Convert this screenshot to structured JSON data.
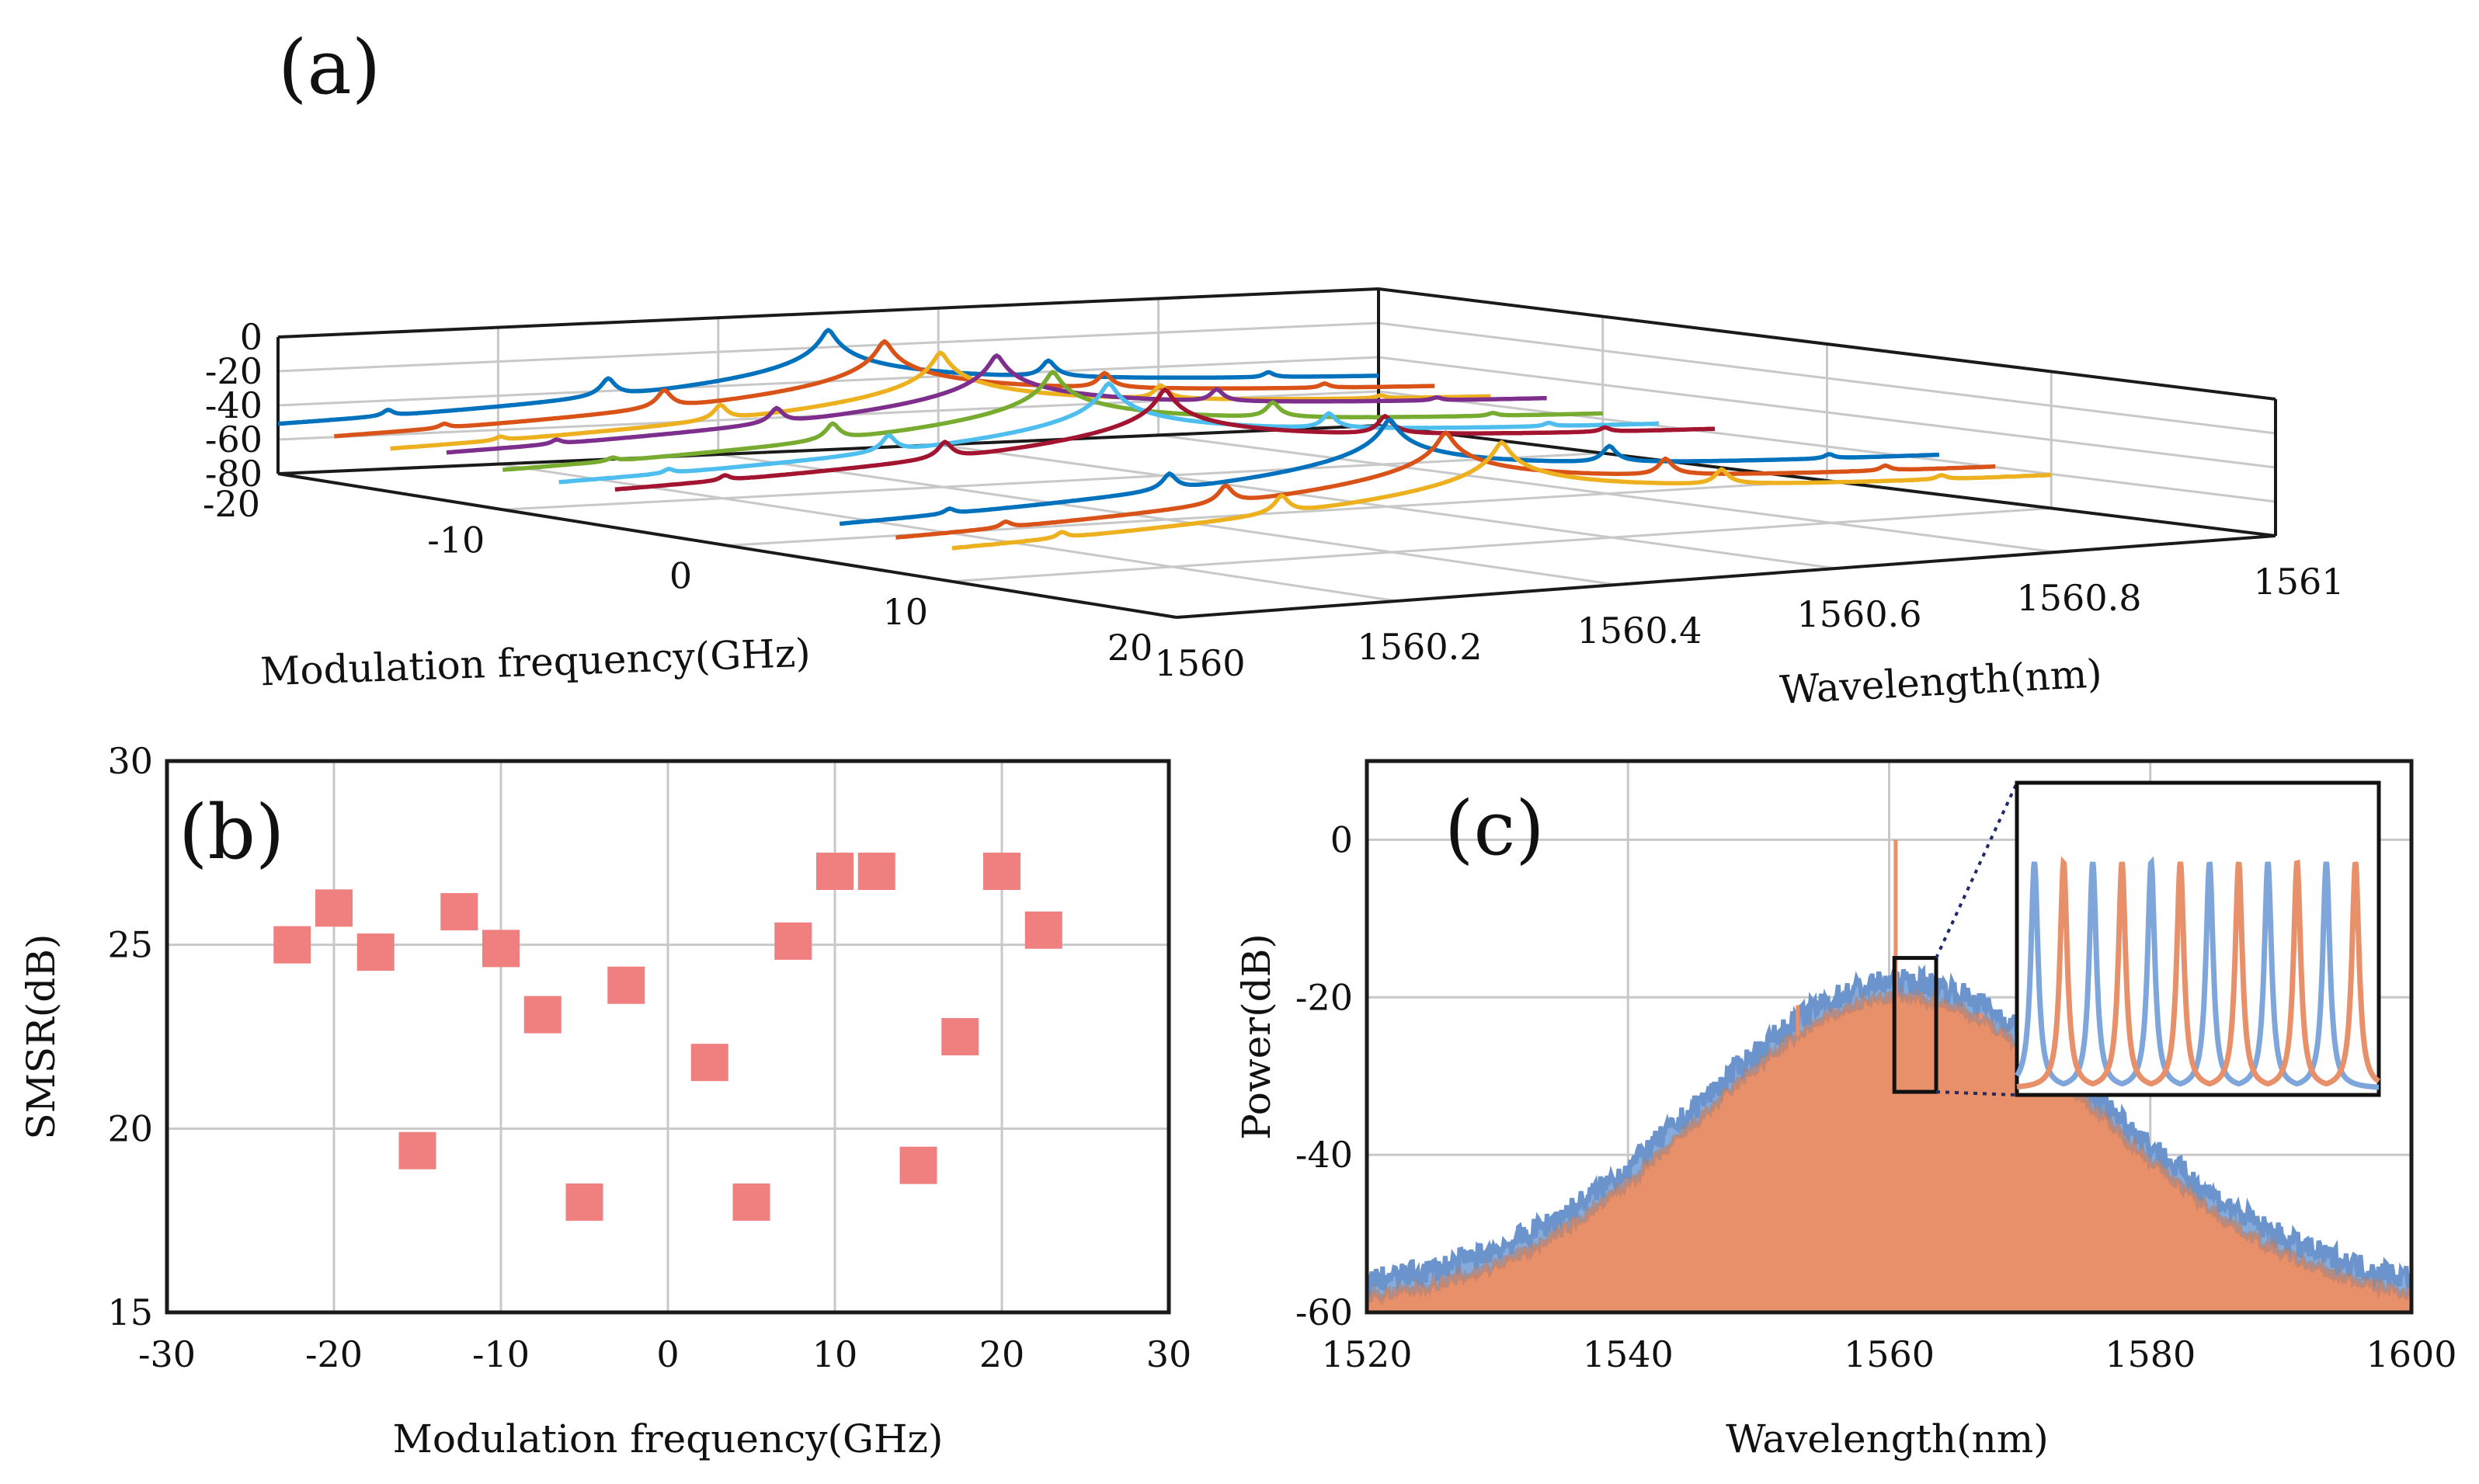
{
  "chart_data": [
    {
      "panel": "(a)",
      "type": "line",
      "title": "",
      "xlabel": "Wavelength(nm)",
      "ylabel": "Modulation frequency(GHz)",
      "zlabel": "",
      "x_range": [
        1560,
        1561
      ],
      "y_range": [
        -20,
        20
      ],
      "z_range": [
        -80,
        0
      ],
      "x_ticks": [
        "1560",
        "1560.2",
        "1560.4",
        "1560.6",
        "1560.8",
        "1561"
      ],
      "y_ticks": [
        "-20",
        "-10",
        "0",
        "10",
        "20"
      ],
      "z_ticks": [
        "0",
        "-20",
        "-40",
        "-60",
        "-80"
      ],
      "noise_floor_db": -72,
      "series": [
        {
          "name": "-20 GHz",
          "freq": -20,
          "color": "#0072BD",
          "peaks": [
            {
              "x": 1560.1,
              "db": -48
            },
            {
              "x": 1560.3,
              "db": -33
            },
            {
              "x": 1560.5,
              "db": -10
            },
            {
              "x": 1560.7,
              "db": -34
            },
            {
              "x": 1560.9,
              "db": -49
            }
          ]
        },
        {
          "name": "-17.5 GHz",
          "freq": -17.5,
          "color": "#D95319",
          "peaks": [
            {
              "x": 1560.1,
              "db": -52
            },
            {
              "x": 1560.3,
              "db": -35
            },
            {
              "x": 1560.5,
              "db": -12
            },
            {
              "x": 1560.7,
              "db": -37
            },
            {
              "x": 1560.9,
              "db": -52
            }
          ]
        },
        {
          "name": "-15 GHz",
          "freq": -15,
          "color": "#EDB120",
          "peaks": [
            {
              "x": 1560.1,
              "db": -55
            },
            {
              "x": 1560.3,
              "db": -39
            },
            {
              "x": 1560.5,
              "db": -14
            },
            {
              "x": 1560.7,
              "db": -40
            },
            {
              "x": 1560.9,
              "db": -56
            }
          ]
        },
        {
          "name": "-12.5 GHz",
          "freq": -12.5,
          "color": "#7E2F8E",
          "peaks": [
            {
              "x": 1560.1,
              "db": -51
            },
            {
              "x": 1560.3,
              "db": -36
            },
            {
              "x": 1560.5,
              "db": -11
            },
            {
              "x": 1560.7,
              "db": -38
            },
            {
              "x": 1560.9,
              "db": -53
            }
          ]
        },
        {
          "name": "-10 GHz",
          "freq": -10,
          "color": "#77AC30",
          "peaks": [
            {
              "x": 1560.1,
              "db": -57
            },
            {
              "x": 1560.3,
              "db": -40
            },
            {
              "x": 1560.5,
              "db": -16
            },
            {
              "x": 1560.7,
              "db": -41
            },
            {
              "x": 1560.9,
              "db": -58
            }
          ]
        },
        {
          "name": "-7.5 GHz",
          "freq": -7.5,
          "color": "#4DBEEE",
          "peaks": [
            {
              "x": 1560.1,
              "db": -58
            },
            {
              "x": 1560.3,
              "db": -42
            },
            {
              "x": 1560.5,
              "db": -18
            },
            {
              "x": 1560.7,
              "db": -43
            },
            {
              "x": 1560.9,
              "db": -59
            }
          ]
        },
        {
          "name": "-5 GHz",
          "freq": -5,
          "color": "#A2142F",
          "peaks": [
            {
              "x": 1560.1,
              "db": -56
            },
            {
              "x": 1560.3,
              "db": -41
            },
            {
              "x": 1560.5,
              "db": -17
            },
            {
              "x": 1560.7,
              "db": -40
            },
            {
              "x": 1560.9,
              "db": -57
            }
          ]
        },
        {
          "name": "5 GHz",
          "freq": 5,
          "color": "#0072BD",
          "peaks": [
            {
              "x": 1560.1,
              "db": -55
            },
            {
              "x": 1560.3,
              "db": -40
            },
            {
              "x": 1560.5,
              "db": -16
            },
            {
              "x": 1560.7,
              "db": -40
            },
            {
              "x": 1560.9,
              "db": -56
            }
          ]
        },
        {
          "name": "7.5 GHz",
          "freq": 7.5,
          "color": "#D95319",
          "peaks": [
            {
              "x": 1560.1,
              "db": -57
            },
            {
              "x": 1560.3,
              "db": -42
            },
            {
              "x": 1560.5,
              "db": -19
            },
            {
              "x": 1560.7,
              "db": -43
            },
            {
              "x": 1560.9,
              "db": -58
            }
          ]
        },
        {
          "name": "10 GHz",
          "freq": 10,
          "color": "#EDB120",
          "peaks": [
            {
              "x": 1560.1,
              "db": -58
            },
            {
              "x": 1560.3,
              "db": -43
            },
            {
              "x": 1560.5,
              "db": -20
            },
            {
              "x": 1560.7,
              "db": -45
            },
            {
              "x": 1560.9,
              "db": -60
            }
          ]
        }
      ]
    },
    {
      "panel": "(b)",
      "type": "scatter",
      "title": "",
      "xlabel": "Modulation frequency(GHz)",
      "ylabel": "SMSR(dB)",
      "xlim": [
        -30,
        30
      ],
      "ylim": [
        15,
        30
      ],
      "x_ticks": [
        "-30",
        "-20",
        "-10",
        "0",
        "10",
        "20",
        "30"
      ],
      "y_ticks": [
        "15",
        "20",
        "25",
        "30"
      ],
      "grid": true,
      "marker_color": "#F08080",
      "points": [
        {
          "x": -22.5,
          "y": 25.0
        },
        {
          "x": -20,
          "y": 26.0
        },
        {
          "x": -17.5,
          "y": 24.8
        },
        {
          "x": -15,
          "y": 19.4
        },
        {
          "x": -12.5,
          "y": 25.9
        },
        {
          "x": -10,
          "y": 24.9
        },
        {
          "x": -7.5,
          "y": 23.1
        },
        {
          "x": -5,
          "y": 18.0
        },
        {
          "x": -2.5,
          "y": 23.9
        },
        {
          "x": 2.5,
          "y": 21.8
        },
        {
          "x": 5,
          "y": 18.0
        },
        {
          "x": 7.5,
          "y": 25.1
        },
        {
          "x": 10,
          "y": 27.0
        },
        {
          "x": 12.5,
          "y": 27.0
        },
        {
          "x": 15,
          "y": 19.0
        },
        {
          "x": 17.5,
          "y": 22.5
        },
        {
          "x": 20,
          "y": 27.0
        },
        {
          "x": 22.5,
          "y": 25.4
        }
      ]
    },
    {
      "panel": "(c)",
      "type": "area",
      "title": "",
      "xlabel": "Wavelength(nm)",
      "ylabel": "Power(dB)",
      "xlim": [
        1520,
        1600
      ],
      "ylim": [
        -60,
        10
      ],
      "x_ticks": [
        "1520",
        "1540",
        "1560",
        "1580",
        "1600"
      ],
      "y_ticks": [
        "0",
        "-20",
        "-40",
        "-60"
      ],
      "grid": true,
      "series": [
        {
          "name": "blue spectrum",
          "color": "#7EA6DA",
          "center": 1561,
          "peak_db": -18,
          "edge_db": -56
        },
        {
          "name": "orange spectrum",
          "color": "#E8906A",
          "center": 1561,
          "peak_db": -20,
          "edge_db": -58,
          "spikes": [
            {
              "x": 1553,
              "db": -21
            },
            {
              "x": 1560.5,
              "db": 0
            },
            {
              "x": 1567,
              "db": -22
            }
          ]
        }
      ],
      "inset": {
        "zoom_x": [
          1560.4,
          1563.6
        ],
        "zoom_y": [
          -32,
          -15
        ],
        "modes": 12
      }
    }
  ]
}
